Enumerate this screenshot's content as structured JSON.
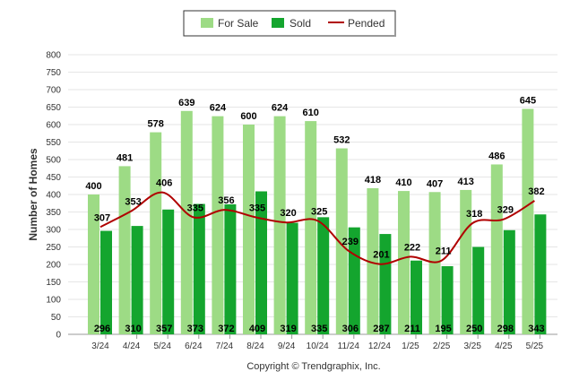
{
  "chart_data": {
    "type": "bar",
    "ylabel": "Number of Homes",
    "ylim": [
      0,
      800
    ],
    "yticks": [
      0,
      50,
      100,
      150,
      200,
      250,
      300,
      350,
      400,
      450,
      500,
      550,
      600,
      650,
      700,
      750,
      800
    ],
    "grid": true,
    "legend_position": "top-center",
    "categories": [
      "3/24",
      "4/24",
      "5/24",
      "6/24",
      "7/24",
      "8/24",
      "9/24",
      "10/24",
      "11/24",
      "12/24",
      "1/25",
      "2/25",
      "3/25",
      "4/25",
      "5/25"
    ],
    "series": [
      {
        "name": "For Sale",
        "type": "bar",
        "color": "#9ddb85",
        "values": [
          400,
          481,
          578,
          639,
          624,
          600,
          624,
          610,
          532,
          418,
          410,
          407,
          413,
          486,
          645
        ]
      },
      {
        "name": "Sold",
        "type": "bar",
        "color": "#14a52e",
        "values": [
          296,
          310,
          357,
          373,
          372,
          409,
          319,
          335,
          306,
          287,
          211,
          195,
          250,
          298,
          343
        ]
      },
      {
        "name": "Pended",
        "type": "line",
        "color": "#b00000",
        "values": [
          307,
          353,
          406,
          335,
          356,
          335,
          320,
          325,
          239,
          201,
          222,
          211,
          318,
          329,
          382
        ]
      }
    ]
  },
  "footer": {
    "copyright": "Copyright © Trendgraphix, Inc."
  }
}
